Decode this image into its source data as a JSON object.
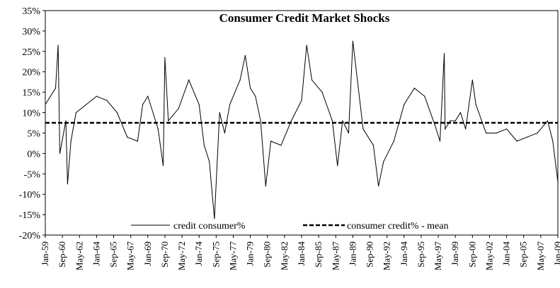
{
  "chart_data": {
    "type": "line",
    "title": "Consumer Credit Market Shocks",
    "xlabel": "",
    "ylabel": "",
    "ylim": [
      -20,
      35
    ],
    "y_ticks": [
      "35%",
      "30%",
      "25%",
      "20%",
      "15%",
      "10%",
      "5%",
      "0%",
      "-5%",
      "-10%",
      "-15%",
      "-20%"
    ],
    "y_tick_values": [
      35,
      30,
      25,
      20,
      15,
      10,
      5,
      0,
      -5,
      -10,
      -15,
      -20
    ],
    "x_range": [
      "Jan-59",
      "Jan-09"
    ],
    "x_ticks": [
      "Jan-59",
      "Sep-60",
      "May-62",
      "Jan-64",
      "Sep-65",
      "May-67",
      "Jan-69",
      "Sep-70",
      "May-72",
      "Jan-74",
      "Sep-75",
      "May-77",
      "Jan-79",
      "Sep-80",
      "May-82",
      "Jan-84",
      "Sep-85",
      "May-87",
      "Jan-89",
      "Sep-90",
      "May-92",
      "Jan-94",
      "Sep-95",
      "May-97",
      "Jan-99",
      "Sep-00",
      "May-02",
      "Jan-04",
      "Sep-05",
      "May-07",
      "Jan-09"
    ],
    "grid": false,
    "legend_position": "bottom",
    "series": [
      {
        "name": "credit consumer%",
        "style": "solid",
        "color": "#000000",
        "x": [
          "Jan-59",
          "Jan-60",
          "Apr-60",
          "Jun-60",
          "Jan-61",
          "Mar-61",
          "Jul-61",
          "Jan-62",
          "Jan-63",
          "Jan-64",
          "Jan-65",
          "Jan-66",
          "Jan-67",
          "Jan-68",
          "Jul-68",
          "Jan-69",
          "Jan-70",
          "Jul-70",
          "Sep-70",
          "Jan-71",
          "Jan-72",
          "Jan-73",
          "Jan-74",
          "Jul-74",
          "Jan-75",
          "Jul-75",
          "Jan-76",
          "Jul-76",
          "Jan-77",
          "Jan-78",
          "Jul-78",
          "Jan-79",
          "Jul-79",
          "Jan-80",
          "Jul-80",
          "Jan-81",
          "Jan-82",
          "Jan-83",
          "Jan-84",
          "Jul-84",
          "Jan-85",
          "Jan-86",
          "Jan-87",
          "Jul-87",
          "Jan-88",
          "Aug-88",
          "Jan-89",
          "Jan-90",
          "Jan-91",
          "Jul-91",
          "Jan-92",
          "Jan-93",
          "Jan-94",
          "Jan-95",
          "Jan-96",
          "Jan-97",
          "Jul-97",
          "Dec-97",
          "Jan-98",
          "Jul-98",
          "Jan-99",
          "Jul-99",
          "Jan-00",
          "Sep-00",
          "Jan-01",
          "Jan-02",
          "Jan-03",
          "Jan-04",
          "Jan-05",
          "Jan-06",
          "Jan-07",
          "Jan-08",
          "Jul-08",
          "Jan-09"
        ],
        "values": [
          12,
          16,
          26.5,
          0,
          8,
          -7.5,
          3,
          10,
          12,
          14,
          13,
          10,
          4,
          3,
          12,
          14,
          6,
          -3,
          23.5,
          8,
          11,
          18,
          12,
          2,
          -2,
          -16,
          10,
          5,
          12,
          18,
          24,
          16,
          14,
          8,
          -8,
          3,
          2,
          8,
          13,
          26.5,
          18,
          15,
          8,
          -3,
          8,
          5,
          27.5,
          6,
          2,
          -8,
          -2,
          3,
          12,
          16,
          14,
          7,
          3,
          24.5,
          6,
          8,
          8,
          10,
          6,
          18,
          12,
          5,
          5,
          6,
          3,
          4,
          5,
          8,
          3,
          -7
        ]
      },
      {
        "name": "consumer credit% - mean",
        "style": "dashed",
        "color": "#000000",
        "value": 7.5
      }
    ],
    "legend": [
      "credit consumer%",
      "consumer credit% - mean"
    ]
  }
}
